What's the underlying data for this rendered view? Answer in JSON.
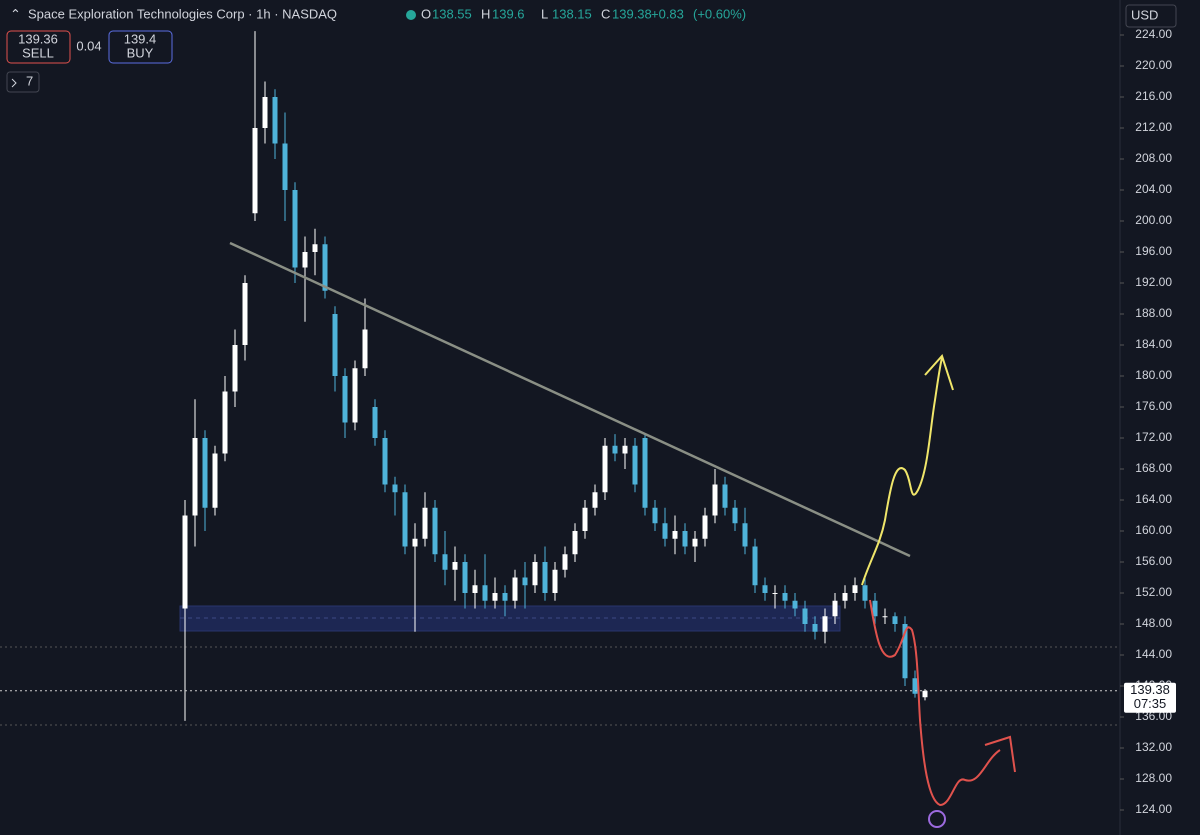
{
  "chart_data": {
    "type": "candlestick",
    "title": "Space Exploration Technologies Corp · 1h · NASDAQ",
    "ohlc_labels": [
      "O",
      "H",
      "L",
      "C"
    ],
    "open": 138.55,
    "high": 139.6,
    "low": 138.15,
    "close": 139.38,
    "change": "+0.83",
    "change_pct": "(+0.60%)",
    "sell": {
      "price": 139.36,
      "label": "SELL"
    },
    "spread": 0.04,
    "buy": {
      "price": 139.4,
      "label": "BUY"
    },
    "indicators": "7",
    "currency": "USD",
    "countdown": "07:35",
    "up_color": "#ffffff",
    "down_color": "#4fb3d9",
    "ylim": [
      124,
      224
    ],
    "yticks": [
      {
        "value": 124,
        "label": "124.00"
      },
      {
        "value": 128,
        "label": "128.00"
      },
      {
        "value": 132,
        "label": "132.00"
      },
      {
        "value": 136,
        "label": "136.00"
      },
      {
        "value": 140,
        "label": "140.00"
      },
      {
        "value": 144,
        "label": "144.00"
      },
      {
        "value": 148,
        "label": "148.00"
      },
      {
        "value": 152,
        "label": "152.00"
      },
      {
        "value": 156,
        "label": "156.00"
      },
      {
        "value": 160,
        "label": "160.00"
      },
      {
        "value": 164,
        "label": "164.00"
      },
      {
        "value": 168,
        "label": "168.00"
      },
      {
        "value": 172,
        "label": "172.00"
      },
      {
        "value": 176,
        "label": "176.00"
      },
      {
        "value": 180,
        "label": "180.00"
      },
      {
        "value": 184,
        "label": "184.00"
      },
      {
        "value": 188,
        "label": "188.00"
      },
      {
        "value": 192,
        "label": "192.00"
      },
      {
        "value": 196,
        "label": "196.00"
      },
      {
        "value": 200,
        "label": "200.00"
      },
      {
        "value": 204,
        "label": "204.00"
      },
      {
        "value": 208,
        "label": "208.00"
      },
      {
        "value": 212,
        "label": "212.00"
      },
      {
        "value": 216,
        "label": "216.00"
      },
      {
        "value": 220,
        "label": "220.00"
      },
      {
        "value": 224,
        "label": "224.00"
      }
    ],
    "candles": [
      [
        150,
        164,
        135.5,
        162
      ],
      [
        162,
        177,
        158,
        172
      ],
      [
        172,
        173,
        160,
        163
      ],
      [
        163,
        171,
        162,
        170
      ],
      [
        170,
        180,
        169,
        178
      ],
      [
        178,
        186,
        176,
        184
      ],
      [
        184,
        193,
        182,
        192
      ],
      [
        201,
        224.5,
        200,
        212
      ],
      [
        212,
        218,
        210,
        216
      ],
      [
        216,
        217,
        208,
        210
      ],
      [
        210,
        214,
        200,
        204
      ],
      [
        204,
        205,
        192,
        194
      ],
      [
        194,
        198,
        187,
        196
      ],
      [
        196,
        199,
        193,
        197
      ],
      [
        197,
        198,
        190,
        191
      ],
      [
        188,
        189,
        178,
        180
      ],
      [
        180,
        181,
        172,
        174
      ],
      [
        174,
        182,
        173,
        181
      ],
      [
        181,
        190,
        180,
        186
      ],
      [
        176,
        177,
        171,
        172
      ],
      [
        172,
        173,
        165,
        166
      ],
      [
        166,
        167,
        162,
        165
      ],
      [
        165,
        166,
        157,
        158
      ],
      [
        158,
        161,
        147,
        159
      ],
      [
        159,
        165,
        158,
        163
      ],
      [
        163,
        164,
        156,
        157
      ],
      [
        157,
        160,
        153,
        155
      ],
      [
        155,
        158,
        151,
        156
      ],
      [
        156,
        157,
        150,
        152
      ],
      [
        152,
        155,
        150,
        153
      ],
      [
        153,
        157,
        150,
        151
      ],
      [
        151,
        154,
        150,
        152
      ],
      [
        152,
        153,
        149,
        151
      ],
      [
        151,
        155,
        150,
        154
      ],
      [
        154,
        156,
        150,
        153
      ],
      [
        153,
        157,
        152,
        156
      ],
      [
        156,
        158,
        151,
        152
      ],
      [
        152,
        156,
        151,
        155
      ],
      [
        155,
        158,
        154,
        157
      ],
      [
        157,
        161,
        156,
        160
      ],
      [
        160,
        164,
        159,
        163
      ],
      [
        163,
        166,
        162,
        165
      ],
      [
        165,
        172,
        164,
        171
      ],
      [
        171,
        172.5,
        169,
        170
      ],
      [
        170,
        172,
        168,
        171
      ],
      [
        171,
        172,
        165,
        166
      ],
      [
        172,
        172.5,
        162,
        163
      ],
      [
        163,
        164,
        160,
        161
      ],
      [
        161,
        163,
        158,
        159
      ],
      [
        159,
        162,
        157,
        160
      ],
      [
        160,
        161,
        157,
        158
      ],
      [
        158,
        160,
        156,
        159
      ],
      [
        159,
        163,
        158,
        162
      ],
      [
        162,
        168,
        161,
        166
      ],
      [
        166,
        167,
        162,
        163
      ],
      [
        163,
        164,
        160,
        161
      ],
      [
        161,
        163,
        157,
        158
      ],
      [
        158,
        159,
        152,
        153
      ],
      [
        153,
        154,
        151,
        152
      ],
      [
        152,
        153,
        150,
        152
      ],
      [
        152,
        153,
        150,
        151
      ],
      [
        151,
        152,
        149,
        150
      ],
      [
        150,
        151,
        147,
        148
      ],
      [
        148,
        149,
        146,
        147
      ],
      [
        147,
        150,
        145.5,
        149
      ],
      [
        149,
        152,
        148,
        151
      ],
      [
        151,
        153,
        150,
        152
      ],
      [
        152,
        154,
        151,
        153
      ],
      [
        153,
        154,
        150,
        151
      ],
      [
        151,
        152,
        148,
        149
      ],
      [
        149,
        150,
        148,
        149
      ],
      [
        149,
        149.5,
        147,
        148
      ],
      [
        148,
        149,
        140,
        141
      ],
      [
        141,
        142,
        138.5,
        139
      ],
      [
        138.55,
        139.6,
        138.15,
        139.38
      ]
    ]
  }
}
